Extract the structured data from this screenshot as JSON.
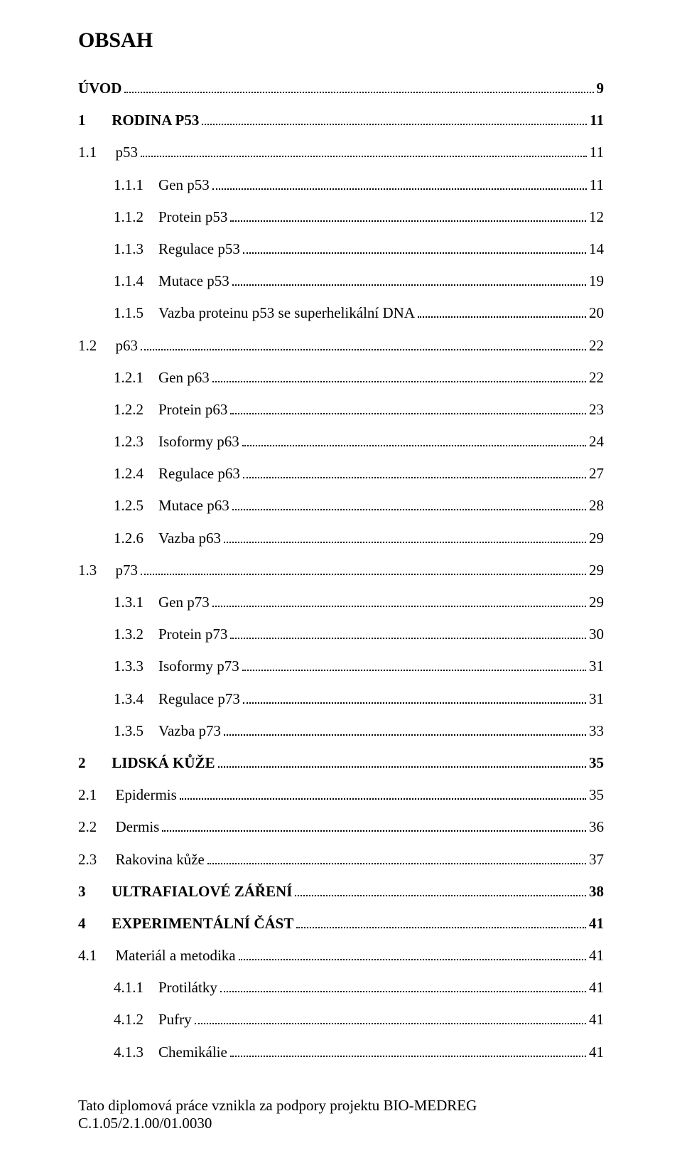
{
  "title": "OBSAH",
  "toc": [
    {
      "num": "",
      "text": "ÚVOD",
      "page": "9",
      "level": 0,
      "bold": true,
      "num_gap": ""
    },
    {
      "num": "1",
      "text": "RODINA P53",
      "page": "11",
      "level": 0,
      "bold": true,
      "num_gap": "       "
    },
    {
      "num": "1.1",
      "text": "p53",
      "page": "11",
      "level": 1,
      "bold": false,
      "num_gap": "     "
    },
    {
      "num": "1.1.1",
      "text": "Gen p53",
      "page": "11",
      "level": 2,
      "bold": false,
      "num_gap": "    "
    },
    {
      "num": "1.1.2",
      "text": "Protein p53",
      "page": "12",
      "level": 2,
      "bold": false,
      "num_gap": "    "
    },
    {
      "num": "1.1.3",
      "text": "Regulace p53",
      "page": "14",
      "level": 2,
      "bold": false,
      "num_gap": "    "
    },
    {
      "num": "1.1.4",
      "text": "Mutace p53",
      "page": "19",
      "level": 2,
      "bold": false,
      "num_gap": "    "
    },
    {
      "num": "1.1.5",
      "text": "Vazba proteinu p53 se superhelikální DNA",
      "page": "20",
      "level": 2,
      "bold": false,
      "num_gap": "    "
    },
    {
      "num": "1.2",
      "text": "p63",
      "page": "22",
      "level": 1,
      "bold": false,
      "num_gap": "     "
    },
    {
      "num": "1.2.1",
      "text": "Gen p63",
      "page": "22",
      "level": 2,
      "bold": false,
      "num_gap": "    "
    },
    {
      "num": "1.2.2",
      "text": "Protein p63",
      "page": "23",
      "level": 2,
      "bold": false,
      "num_gap": "    "
    },
    {
      "num": "1.2.3",
      "text": "Isoformy p63",
      "page": "24",
      "level": 2,
      "bold": false,
      "num_gap": "    "
    },
    {
      "num": "1.2.4",
      "text": "Regulace p63",
      "page": "27",
      "level": 2,
      "bold": false,
      "num_gap": "    "
    },
    {
      "num": "1.2.5",
      "text": "Mutace p63",
      "page": "28",
      "level": 2,
      "bold": false,
      "num_gap": "    "
    },
    {
      "num": "1.2.6",
      "text": "Vazba p63",
      "page": "29",
      "level": 2,
      "bold": false,
      "num_gap": "    "
    },
    {
      "num": "1.3",
      "text": "p73",
      "page": "29",
      "level": 1,
      "bold": false,
      "num_gap": "     "
    },
    {
      "num": "1.3.1",
      "text": "Gen p73",
      "page": "29",
      "level": 2,
      "bold": false,
      "num_gap": "    "
    },
    {
      "num": "1.3.2",
      "text": "Protein p73",
      "page": "30",
      "level": 2,
      "bold": false,
      "num_gap": "    "
    },
    {
      "num": "1.3.3",
      "text": "Isoformy p73",
      "page": "31",
      "level": 2,
      "bold": false,
      "num_gap": "    "
    },
    {
      "num": "1.3.4",
      "text": "Regulace p73",
      "page": "31",
      "level": 2,
      "bold": false,
      "num_gap": "    "
    },
    {
      "num": "1.3.5",
      "text": "Vazba p73",
      "page": "33",
      "level": 2,
      "bold": false,
      "num_gap": "    "
    },
    {
      "num": "2",
      "text": "LIDSKÁ KŮŽE",
      "page": "35",
      "level": 0,
      "bold": true,
      "num_gap": "       "
    },
    {
      "num": "2.1",
      "text": "Epidermis",
      "page": "35",
      "level": 1,
      "bold": false,
      "num_gap": "     "
    },
    {
      "num": "2.2",
      "text": "Dermis",
      "page": "36",
      "level": 1,
      "bold": false,
      "num_gap": "     "
    },
    {
      "num": "2.3",
      "text": "Rakovina kůže",
      "page": "37",
      "level": 1,
      "bold": false,
      "num_gap": "     "
    },
    {
      "num": "3",
      "text": "ULTRAFIALOVÉ ZÁŘENÍ",
      "page": "38",
      "level": 0,
      "bold": true,
      "num_gap": "       "
    },
    {
      "num": "4",
      "text": "EXPERIMENTÁLNÍ ČÁST",
      "page": "41",
      "level": 0,
      "bold": true,
      "num_gap": "       "
    },
    {
      "num": "4.1",
      "text": "Materiál a metodika",
      "page": "41",
      "level": 1,
      "bold": false,
      "num_gap": "     "
    },
    {
      "num": "4.1.1",
      "text": "Protilátky",
      "page": "41",
      "level": 2,
      "bold": false,
      "num_gap": "    "
    },
    {
      "num": "4.1.2",
      "text": "Pufry",
      "page": "41",
      "level": 2,
      "bold": false,
      "num_gap": "    "
    },
    {
      "num": "4.1.3",
      "text": "Chemikálie",
      "page": "41",
      "level": 2,
      "bold": false,
      "num_gap": "    "
    }
  ],
  "footer": "Tato diplomová práce vznikla za podpory projektu BIO-MEDREG C.1.05/2.1.00/01.0030"
}
